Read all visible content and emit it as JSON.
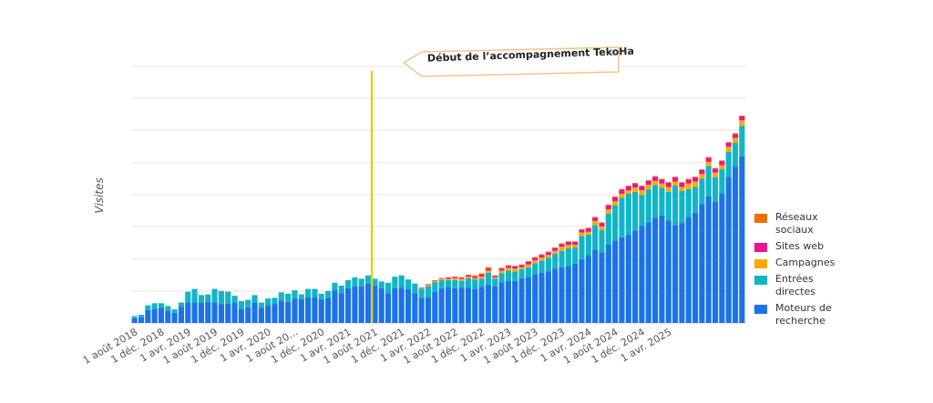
{
  "chart_data": {
    "type": "bar",
    "stacked": true,
    "ylabel": "Visites",
    "y_tick_labels_shown": false,
    "grid": true,
    "legend_position": "right",
    "x_tick_labels": [
      "1 août 2018",
      "1 déc. 2018",
      "1 avr. 2019",
      "1 août 2019",
      "1 déc. 2019",
      "1 avr. 2020",
      "1 août 20...",
      "1 déc. 2020",
      "1 avr. 2021",
      "1 août 2021",
      "1 déc. 2021",
      "1 avr. 2022",
      "1 août 2022",
      "1 déc. 2022",
      "1 avr. 2023",
      "1 août 2023",
      "1 déc. 2023",
      "1 avr. 2024",
      "1 août 2024",
      "1 déc. 2024",
      "1 avr. 2025"
    ],
    "x_tick_every": 4,
    "annotation": {
      "text": "Début de l’accompagnement TekoHa",
      "at_index": 36,
      "color": "#F5C518"
    },
    "series": [
      {
        "name": "Moteurs de recherche",
        "color": "#1A73E8",
        "values": [
          7,
          8,
          19,
          21,
          22,
          18,
          15,
          24,
          30,
          30,
          30,
          31,
          30,
          28,
          29,
          30,
          21,
          23,
          30,
          22,
          26,
          28,
          33,
          31,
          36,
          35,
          38,
          38,
          35,
          37,
          48,
          44,
          51,
          54,
          54,
          58,
          55,
          51,
          44,
          51,
          52,
          50,
          44,
          37,
          38,
          46,
          51,
          53,
          51,
          52,
          52,
          50,
          53,
          56,
          54,
          60,
          62,
          62,
          66,
          68,
          72,
          74,
          76,
          80,
          82,
          84,
          87,
          94,
          100,
          108,
          104,
          116,
          121,
          126,
          130,
          136,
          143,
          148,
          155,
          158,
          151,
          144,
          147,
          156,
          162,
          175,
          186,
          178,
          190,
          215,
          230,
          245
        ]
      },
      {
        "name": "Entrées directes",
        "color": "#12B5C7",
        "values": [
          3,
          4,
          7,
          8,
          7,
          7,
          5,
          6,
          16,
          20,
          11,
          11,
          20,
          19,
          17,
          10,
          11,
          11,
          11,
          8,
          10,
          9,
          12,
          12,
          12,
          7,
          12,
          12,
          8,
          10,
          11,
          11,
          12,
          13,
          11,
          12,
          10,
          10,
          15,
          17,
          18,
          14,
          14,
          13,
          16,
          14,
          12,
          10,
          12,
          10,
          14,
          14,
          12,
          18,
          11,
          13,
          15,
          14,
          13,
          14,
          16,
          18,
          20,
          22,
          24,
          26,
          24,
          34,
          30,
          36,
          33,
          45,
          52,
          58,
          60,
          57,
          45,
          48,
          48,
          41,
          42,
          58,
          47,
          41,
          38,
          37,
          45,
          36,
          36,
          37,
          35,
          45
        ]
      },
      {
        "name": "Campagnes",
        "color": "#F9AB00",
        "values": [
          0,
          0,
          0,
          0,
          0,
          0,
          0,
          0,
          0,
          0,
          0,
          0,
          0,
          0,
          0,
          0,
          0,
          0,
          0,
          0,
          0,
          0,
          0,
          0,
          0,
          0,
          0,
          0,
          0,
          0,
          0,
          0,
          0,
          0,
          0,
          0,
          0,
          0,
          0,
          0,
          0,
          0,
          0,
          1,
          2,
          2,
          2,
          2,
          3,
          3,
          2,
          2,
          3,
          3,
          2,
          4,
          4,
          4,
          3,
          4,
          4,
          4,
          4,
          4,
          6,
          5,
          4,
          5,
          4,
          6,
          5,
          6,
          6,
          6,
          5,
          6,
          7,
          7,
          6,
          6,
          7,
          6,
          6,
          8,
          8,
          7,
          6,
          7,
          6,
          7,
          7,
          8
        ]
      },
      {
        "name": "Sites web",
        "color": "#E8178A",
        "values": [
          0,
          0,
          0,
          0,
          0,
          0,
          0,
          0,
          0,
          0,
          0,
          0,
          0,
          0,
          0,
          0,
          0,
          0,
          0,
          0,
          0,
          0,
          0,
          0,
          0,
          0,
          0,
          0,
          0,
          0,
          0,
          0,
          0,
          0,
          0,
          0,
          0,
          0,
          0,
          0,
          0,
          0,
          0,
          1,
          1,
          1,
          1,
          2,
          2,
          2,
          2,
          2,
          3,
          3,
          2,
          3,
          3,
          3,
          3,
          4,
          4,
          4,
          4,
          4,
          4,
          4,
          4,
          4,
          5,
          5,
          5,
          6,
          6,
          6,
          6,
          6,
          6,
          6,
          6,
          6,
          6,
          6,
          6,
          6,
          6,
          6,
          6,
          6,
          6,
          6,
          6,
          6
        ]
      },
      {
        "name": "Réseaux sociaux",
        "color": "#F26B00",
        "values": [
          0,
          0,
          0,
          0,
          0,
          0,
          0,
          0,
          0,
          0,
          0,
          0,
          0,
          0,
          0,
          0,
          0,
          0,
          0,
          0,
          0,
          0,
          0,
          0,
          0,
          0,
          0,
          0,
          0,
          0,
          0,
          0,
          0,
          0,
          0,
          0,
          0,
          0,
          0,
          0,
          0,
          0,
          0,
          0,
          0,
          0,
          0,
          0,
          0,
          0,
          1,
          2,
          2,
          2,
          1,
          1,
          1,
          1,
          1,
          1,
          1,
          1,
          1,
          1,
          1,
          1,
          1,
          1,
          1,
          1,
          1,
          1,
          1,
          1,
          1,
          1,
          1,
          1,
          1,
          1,
          1,
          1,
          1,
          1,
          1,
          1,
          1,
          1,
          1,
          1,
          1,
          1
        ]
      }
    ],
    "legend_order": [
      "Réseaux sociaux",
      "Sites web",
      "Campagnes",
      "Entrées directes",
      "Moteurs de recherche"
    ],
    "legend_labels": {
      "Réseaux sociaux": [
        "Réseaux",
        "sociaux"
      ],
      "Sites web": [
        "Sites web"
      ],
      "Campagnes": [
        "Campagnes"
      ],
      "Entrées directes": [
        "Entrées",
        "directes"
      ],
      "Moteurs de recherche": [
        "Moteurs de",
        "recherche"
      ]
    }
  }
}
